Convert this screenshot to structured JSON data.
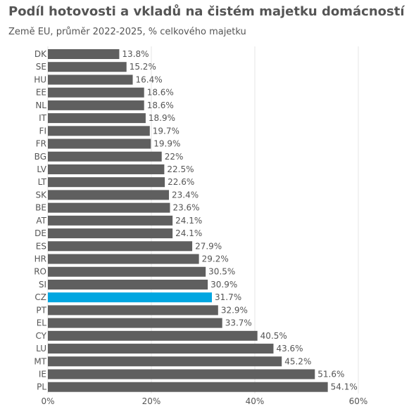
{
  "chart_data": {
    "type": "bar",
    "orientation": "horizontal",
    "title": "Podíl hotovosti a vkladů na čistém majetku domácností",
    "subtitle": "Země EU, průměr 2022-2025, % celkového majetku",
    "categories": [
      "DK",
      "SE",
      "HU",
      "EE",
      "NL",
      "IT",
      "FI",
      "FR",
      "BG",
      "LV",
      "LT",
      "SK",
      "BE",
      "AT",
      "DE",
      "ES",
      "HR",
      "RO",
      "SI",
      "CZ",
      "PT",
      "EL",
      "CY",
      "LU",
      "MT",
      "IE",
      "PL"
    ],
    "values": [
      13.8,
      15.2,
      16.4,
      18.6,
      18.6,
      18.9,
      19.7,
      19.9,
      22,
      22.5,
      22.6,
      23.4,
      23.6,
      24.1,
      24.1,
      27.9,
      29.2,
      30.5,
      30.9,
      31.7,
      32.9,
      33.7,
      40.5,
      43.6,
      45.2,
      51.6,
      54.1
    ],
    "value_labels": [
      "13.8%",
      "15.2%",
      "16.4%",
      "18.6%",
      "18.6%",
      "18.9%",
      "19.7%",
      "19.9%",
      "22%",
      "22.5%",
      "22.6%",
      "23.4%",
      "23.6%",
      "24.1%",
      "24.1%",
      "27.9%",
      "29.2%",
      "30.5%",
      "30.9%",
      "31.7%",
      "32.9%",
      "33.7%",
      "40.5%",
      "43.6%",
      "45.2%",
      "51.6%",
      "54.1%"
    ],
    "highlight": "CZ",
    "xlim": [
      0,
      60
    ],
    "xticks": [
      0,
      20,
      40,
      60
    ],
    "xtick_labels": [
      "0%",
      "20%",
      "40%",
      "60%"
    ],
    "grid": true,
    "colors": {
      "bar": "#5f5f5f",
      "highlight": "#00a6e1",
      "grid": "#e6e6e6",
      "text": "#555555"
    }
  }
}
